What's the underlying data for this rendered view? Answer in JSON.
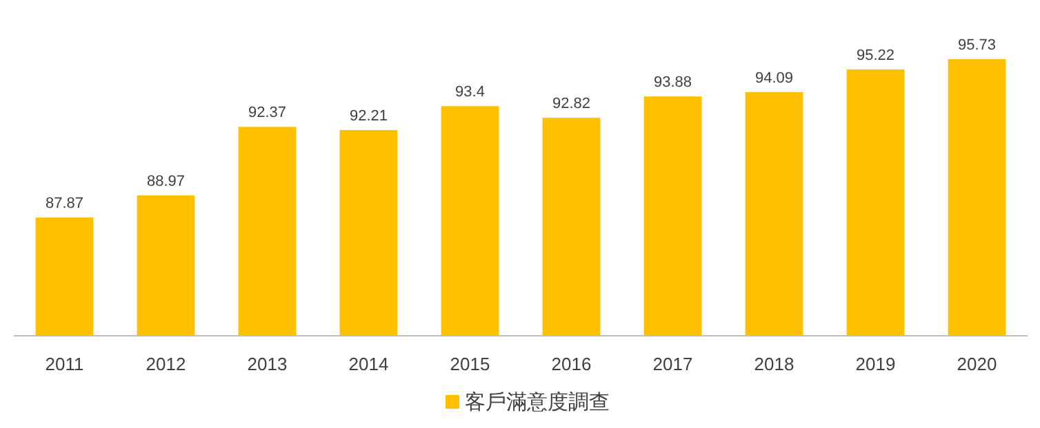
{
  "chart_data": {
    "type": "bar",
    "categories": [
      "2011",
      "2012",
      "2013",
      "2014",
      "2015",
      "2016",
      "2017",
      "2018",
      "2019",
      "2020"
    ],
    "series": [
      {
        "name": "客戶滿意度調查",
        "color": "#ffc000",
        "values": [
          87.87,
          88.97,
          92.37,
          92.21,
          93.4,
          92.82,
          93.88,
          94.09,
          95.22,
          95.73
        ]
      }
    ],
    "ylim": [
      82,
      95.73
    ],
    "data_labels": true,
    "legend": "bottom"
  }
}
